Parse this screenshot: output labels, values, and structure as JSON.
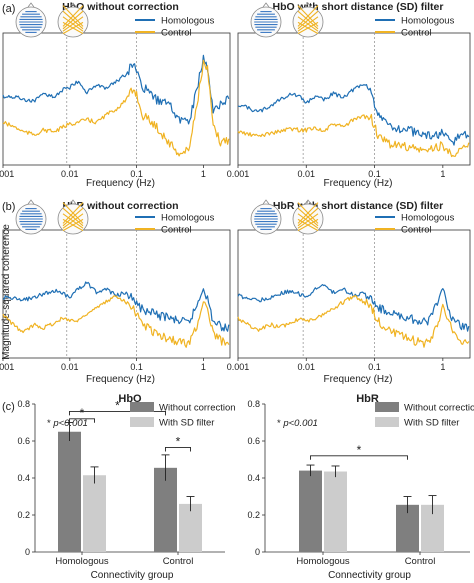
{
  "figure": {
    "panel_labels": [
      "(a)",
      "(b)",
      "(c)"
    ],
    "shared_ylabel": "Magnitude-squared coherence"
  },
  "chart_data": [
    {
      "id": "a-left",
      "type": "line",
      "panel": "(a)",
      "title": "HbO without correction",
      "xlabel": "Frequency (Hz)",
      "ylabel": "",
      "xscale": "log",
      "xlim": [
        0.001,
        2.5
      ],
      "ylim": [
        0.05,
        0.92
      ],
      "xticks": [
        "0.001",
        "0.01",
        "0.1",
        "1"
      ],
      "reference_lines_x": [
        0.009,
        0.1
      ],
      "legend_position": "top-right",
      "series": [
        {
          "name": "Homologous",
          "color": "#1f6fb4",
          "x": [
            0.001,
            0.0015,
            0.002,
            0.003,
            0.004,
            0.006,
            0.008,
            0.01,
            0.013,
            0.018,
            0.025,
            0.035,
            0.05,
            0.07,
            0.09,
            0.1,
            0.12,
            0.15,
            0.2,
            0.3,
            0.45,
            0.6,
            0.8,
            1.0,
            1.15,
            1.4,
            1.8,
            2.5
          ],
          "y": [
            0.5,
            0.5,
            0.48,
            0.47,
            0.52,
            0.5,
            0.55,
            0.56,
            0.6,
            0.53,
            0.58,
            0.55,
            0.6,
            0.65,
            0.72,
            0.68,
            0.55,
            0.55,
            0.48,
            0.45,
            0.35,
            0.33,
            0.55,
            0.75,
            0.7,
            0.4,
            0.45,
            0.5
          ]
        },
        {
          "name": "Control",
          "color": "#f0b323",
          "x": [
            0.001,
            0.0015,
            0.002,
            0.003,
            0.004,
            0.006,
            0.008,
            0.01,
            0.013,
            0.018,
            0.025,
            0.035,
            0.05,
            0.07,
            0.09,
            0.1,
            0.12,
            0.15,
            0.2,
            0.3,
            0.45,
            0.6,
            0.8,
            1.0,
            1.15,
            1.4,
            1.8,
            2.5
          ],
          "y": [
            0.33,
            0.3,
            0.27,
            0.25,
            0.28,
            0.27,
            0.3,
            0.32,
            0.33,
            0.35,
            0.33,
            0.38,
            0.42,
            0.48,
            0.55,
            0.52,
            0.38,
            0.35,
            0.3,
            0.2,
            0.12,
            0.15,
            0.45,
            0.72,
            0.68,
            0.3,
            0.2,
            0.22
          ]
        }
      ]
    },
    {
      "id": "a-right",
      "type": "line",
      "panel": "(a)",
      "title": "HbO with short distance (SD) filter",
      "xlabel": "Frequency (Hz)",
      "ylabel": "",
      "xscale": "log",
      "xlim": [
        0.001,
        2.5
      ],
      "ylim": [
        0.05,
        0.92
      ],
      "xticks": [
        "0.001",
        "0.01",
        "0.1",
        "1"
      ],
      "reference_lines_x": [
        0.009,
        0.1
      ],
      "legend_position": "top-right",
      "series": [
        {
          "name": "Homologous",
          "color": "#1f6fb4",
          "x": [
            0.001,
            0.0015,
            0.002,
            0.003,
            0.004,
            0.006,
            0.008,
            0.01,
            0.013,
            0.018,
            0.025,
            0.035,
            0.05,
            0.07,
            0.09,
            0.1,
            0.12,
            0.15,
            0.2,
            0.3,
            0.45,
            0.6,
            0.8,
            1.0,
            1.15,
            1.4,
            1.8,
            2.5
          ],
          "y": [
            0.45,
            0.42,
            0.4,
            0.44,
            0.48,
            0.52,
            0.5,
            0.46,
            0.5,
            0.48,
            0.52,
            0.5,
            0.55,
            0.58,
            0.55,
            0.45,
            0.35,
            0.32,
            0.3,
            0.28,
            0.26,
            0.24,
            0.25,
            0.26,
            0.22,
            0.2,
            0.25,
            0.25
          ]
        },
        {
          "name": "Control",
          "color": "#f0b323",
          "x": [
            0.001,
            0.0015,
            0.002,
            0.003,
            0.004,
            0.006,
            0.008,
            0.01,
            0.013,
            0.018,
            0.025,
            0.035,
            0.05,
            0.07,
            0.09,
            0.1,
            0.12,
            0.15,
            0.2,
            0.3,
            0.45,
            0.6,
            0.8,
            1.0,
            1.15,
            1.4,
            1.8,
            2.5
          ],
          "y": [
            0.27,
            0.25,
            0.24,
            0.26,
            0.27,
            0.29,
            0.28,
            0.28,
            0.3,
            0.27,
            0.32,
            0.3,
            0.35,
            0.37,
            0.36,
            0.3,
            0.22,
            0.2,
            0.18,
            0.17,
            0.15,
            0.14,
            0.17,
            0.18,
            0.14,
            0.13,
            0.15,
            0.17
          ]
        }
      ]
    },
    {
      "id": "b-left",
      "type": "line",
      "panel": "(b)",
      "title": "HbR without correction",
      "xlabel": "Frequency (Hz)",
      "ylabel": "",
      "xscale": "log",
      "xlim": [
        0.001,
        2.5
      ],
      "ylim": [
        0.05,
        0.85
      ],
      "xticks": [
        "0.001",
        "0.01",
        "0.1",
        "1"
      ],
      "yticks": [
        0.2,
        0.4,
        0.6,
        0.8
      ],
      "reference_lines_x": [
        0.009,
        0.1
      ],
      "legend_position": "top-right",
      "series": [
        {
          "name": "Homologous",
          "color": "#1f6fb4",
          "x": [
            0.001,
            0.0015,
            0.002,
            0.003,
            0.004,
            0.006,
            0.008,
            0.01,
            0.013,
            0.018,
            0.025,
            0.035,
            0.05,
            0.07,
            0.09,
            0.1,
            0.12,
            0.15,
            0.2,
            0.3,
            0.45,
            0.6,
            0.8,
            1.0,
            1.15,
            1.4,
            1.8,
            2.5
          ],
          "y": [
            0.43,
            0.42,
            0.41,
            0.43,
            0.45,
            0.47,
            0.45,
            0.43,
            0.48,
            0.52,
            0.46,
            0.48,
            0.44,
            0.46,
            0.42,
            0.38,
            0.36,
            0.34,
            0.32,
            0.3,
            0.28,
            0.27,
            0.38,
            0.5,
            0.42,
            0.28,
            0.25,
            0.23
          ]
        },
        {
          "name": "Control",
          "color": "#f0b323",
          "x": [
            0.001,
            0.0015,
            0.002,
            0.003,
            0.004,
            0.006,
            0.008,
            0.01,
            0.013,
            0.018,
            0.025,
            0.035,
            0.05,
            0.07,
            0.09,
            0.1,
            0.12,
            0.15,
            0.2,
            0.3,
            0.45,
            0.6,
            0.8,
            1.0,
            1.15,
            1.4,
            1.8,
            2.5
          ],
          "y": [
            0.32,
            0.25,
            0.21,
            0.26,
            0.24,
            0.27,
            0.3,
            0.29,
            0.28,
            0.33,
            0.36,
            0.4,
            0.44,
            0.4,
            0.37,
            0.32,
            0.27,
            0.24,
            0.2,
            0.17,
            0.15,
            0.14,
            0.25,
            0.42,
            0.35,
            0.2,
            0.16,
            0.15
          ]
        }
      ]
    },
    {
      "id": "b-right",
      "type": "line",
      "panel": "(b)",
      "title": "HbR with short distance (SD) filter",
      "xlabel": "Frequency (Hz)",
      "ylabel": "",
      "xscale": "log",
      "xlim": [
        0.001,
        2.5
      ],
      "ylim": [
        0.05,
        0.85
      ],
      "xticks": [
        "0.001",
        "0.01",
        "0.1",
        "1"
      ],
      "reference_lines_x": [
        0.009,
        0.1
      ],
      "legend_position": "top-right",
      "series": [
        {
          "name": "Homologous",
          "color": "#1f6fb4",
          "x": [
            0.001,
            0.0015,
            0.002,
            0.003,
            0.004,
            0.006,
            0.008,
            0.01,
            0.013,
            0.018,
            0.025,
            0.035,
            0.05,
            0.07,
            0.09,
            0.1,
            0.12,
            0.15,
            0.2,
            0.3,
            0.45,
            0.6,
            0.8,
            1.0,
            1.15,
            1.4,
            1.8,
            2.5
          ],
          "y": [
            0.44,
            0.42,
            0.41,
            0.43,
            0.45,
            0.47,
            0.45,
            0.43,
            0.48,
            0.5,
            0.46,
            0.48,
            0.44,
            0.46,
            0.42,
            0.38,
            0.36,
            0.34,
            0.32,
            0.3,
            0.28,
            0.27,
            0.38,
            0.48,
            0.4,
            0.28,
            0.25,
            0.23
          ]
        },
        {
          "name": "Control",
          "color": "#f0b323",
          "x": [
            0.001,
            0.0015,
            0.002,
            0.003,
            0.004,
            0.006,
            0.008,
            0.01,
            0.013,
            0.018,
            0.025,
            0.035,
            0.05,
            0.07,
            0.09,
            0.1,
            0.12,
            0.15,
            0.2,
            0.3,
            0.45,
            0.6,
            0.8,
            1.0,
            1.15,
            1.4,
            1.8,
            2.5
          ],
          "y": [
            0.3,
            0.25,
            0.22,
            0.26,
            0.24,
            0.27,
            0.3,
            0.29,
            0.28,
            0.33,
            0.36,
            0.4,
            0.44,
            0.4,
            0.37,
            0.32,
            0.27,
            0.24,
            0.2,
            0.17,
            0.15,
            0.14,
            0.24,
            0.38,
            0.32,
            0.2,
            0.16,
            0.15
          ]
        }
      ]
    },
    {
      "id": "c-left",
      "type": "bar",
      "panel": "(c)",
      "title": "HbO",
      "xlabel": "Connectivity group",
      "ylabel": "",
      "categories": [
        "Homologous",
        "Control"
      ],
      "ylim": [
        0,
        0.8
      ],
      "yticks": [
        0,
        0.2,
        0.4,
        0.6,
        0.8
      ],
      "yticklabels": [
        "0",
        "0.2",
        "0.4",
        "0.6",
        "0.8"
      ],
      "annotation": "p<0.001",
      "significance_marks": [
        "*",
        "*",
        "*"
      ],
      "legend_position": "top-right",
      "series": [
        {
          "name": "Without correction",
          "color": "#7f7f7f",
          "values": [
            0.65,
            0.455
          ],
          "errors": [
            0.05,
            0.07
          ]
        },
        {
          "name": "With SD filter",
          "color": "#cccccc",
          "values": [
            0.415,
            0.26
          ],
          "errors": [
            0.045,
            0.04
          ]
        }
      ]
    },
    {
      "id": "c-right",
      "type": "bar",
      "panel": "(c)",
      "title": "HbR",
      "xlabel": "Connectivity group",
      "ylabel": "",
      "categories": [
        "Homologous",
        "Control"
      ],
      "ylim": [
        0,
        0.8
      ],
      "yticks": [
        0,
        0.2,
        0.4,
        0.6,
        0.8
      ],
      "yticklabels": [
        "0",
        "0.2",
        "0.4",
        "0.6",
        "0.8"
      ],
      "annotation": "p<0.001",
      "significance_marks": [
        "*"
      ],
      "legend_position": "top-right",
      "series": [
        {
          "name": "Without correction",
          "color": "#7f7f7f",
          "values": [
            0.44,
            0.255
          ],
          "errors": [
            0.03,
            0.045
          ]
        },
        {
          "name": "With SD filter",
          "color": "#cccccc",
          "values": [
            0.435,
            0.255
          ],
          "errors": [
            0.03,
            0.05
          ]
        }
      ]
    }
  ]
}
